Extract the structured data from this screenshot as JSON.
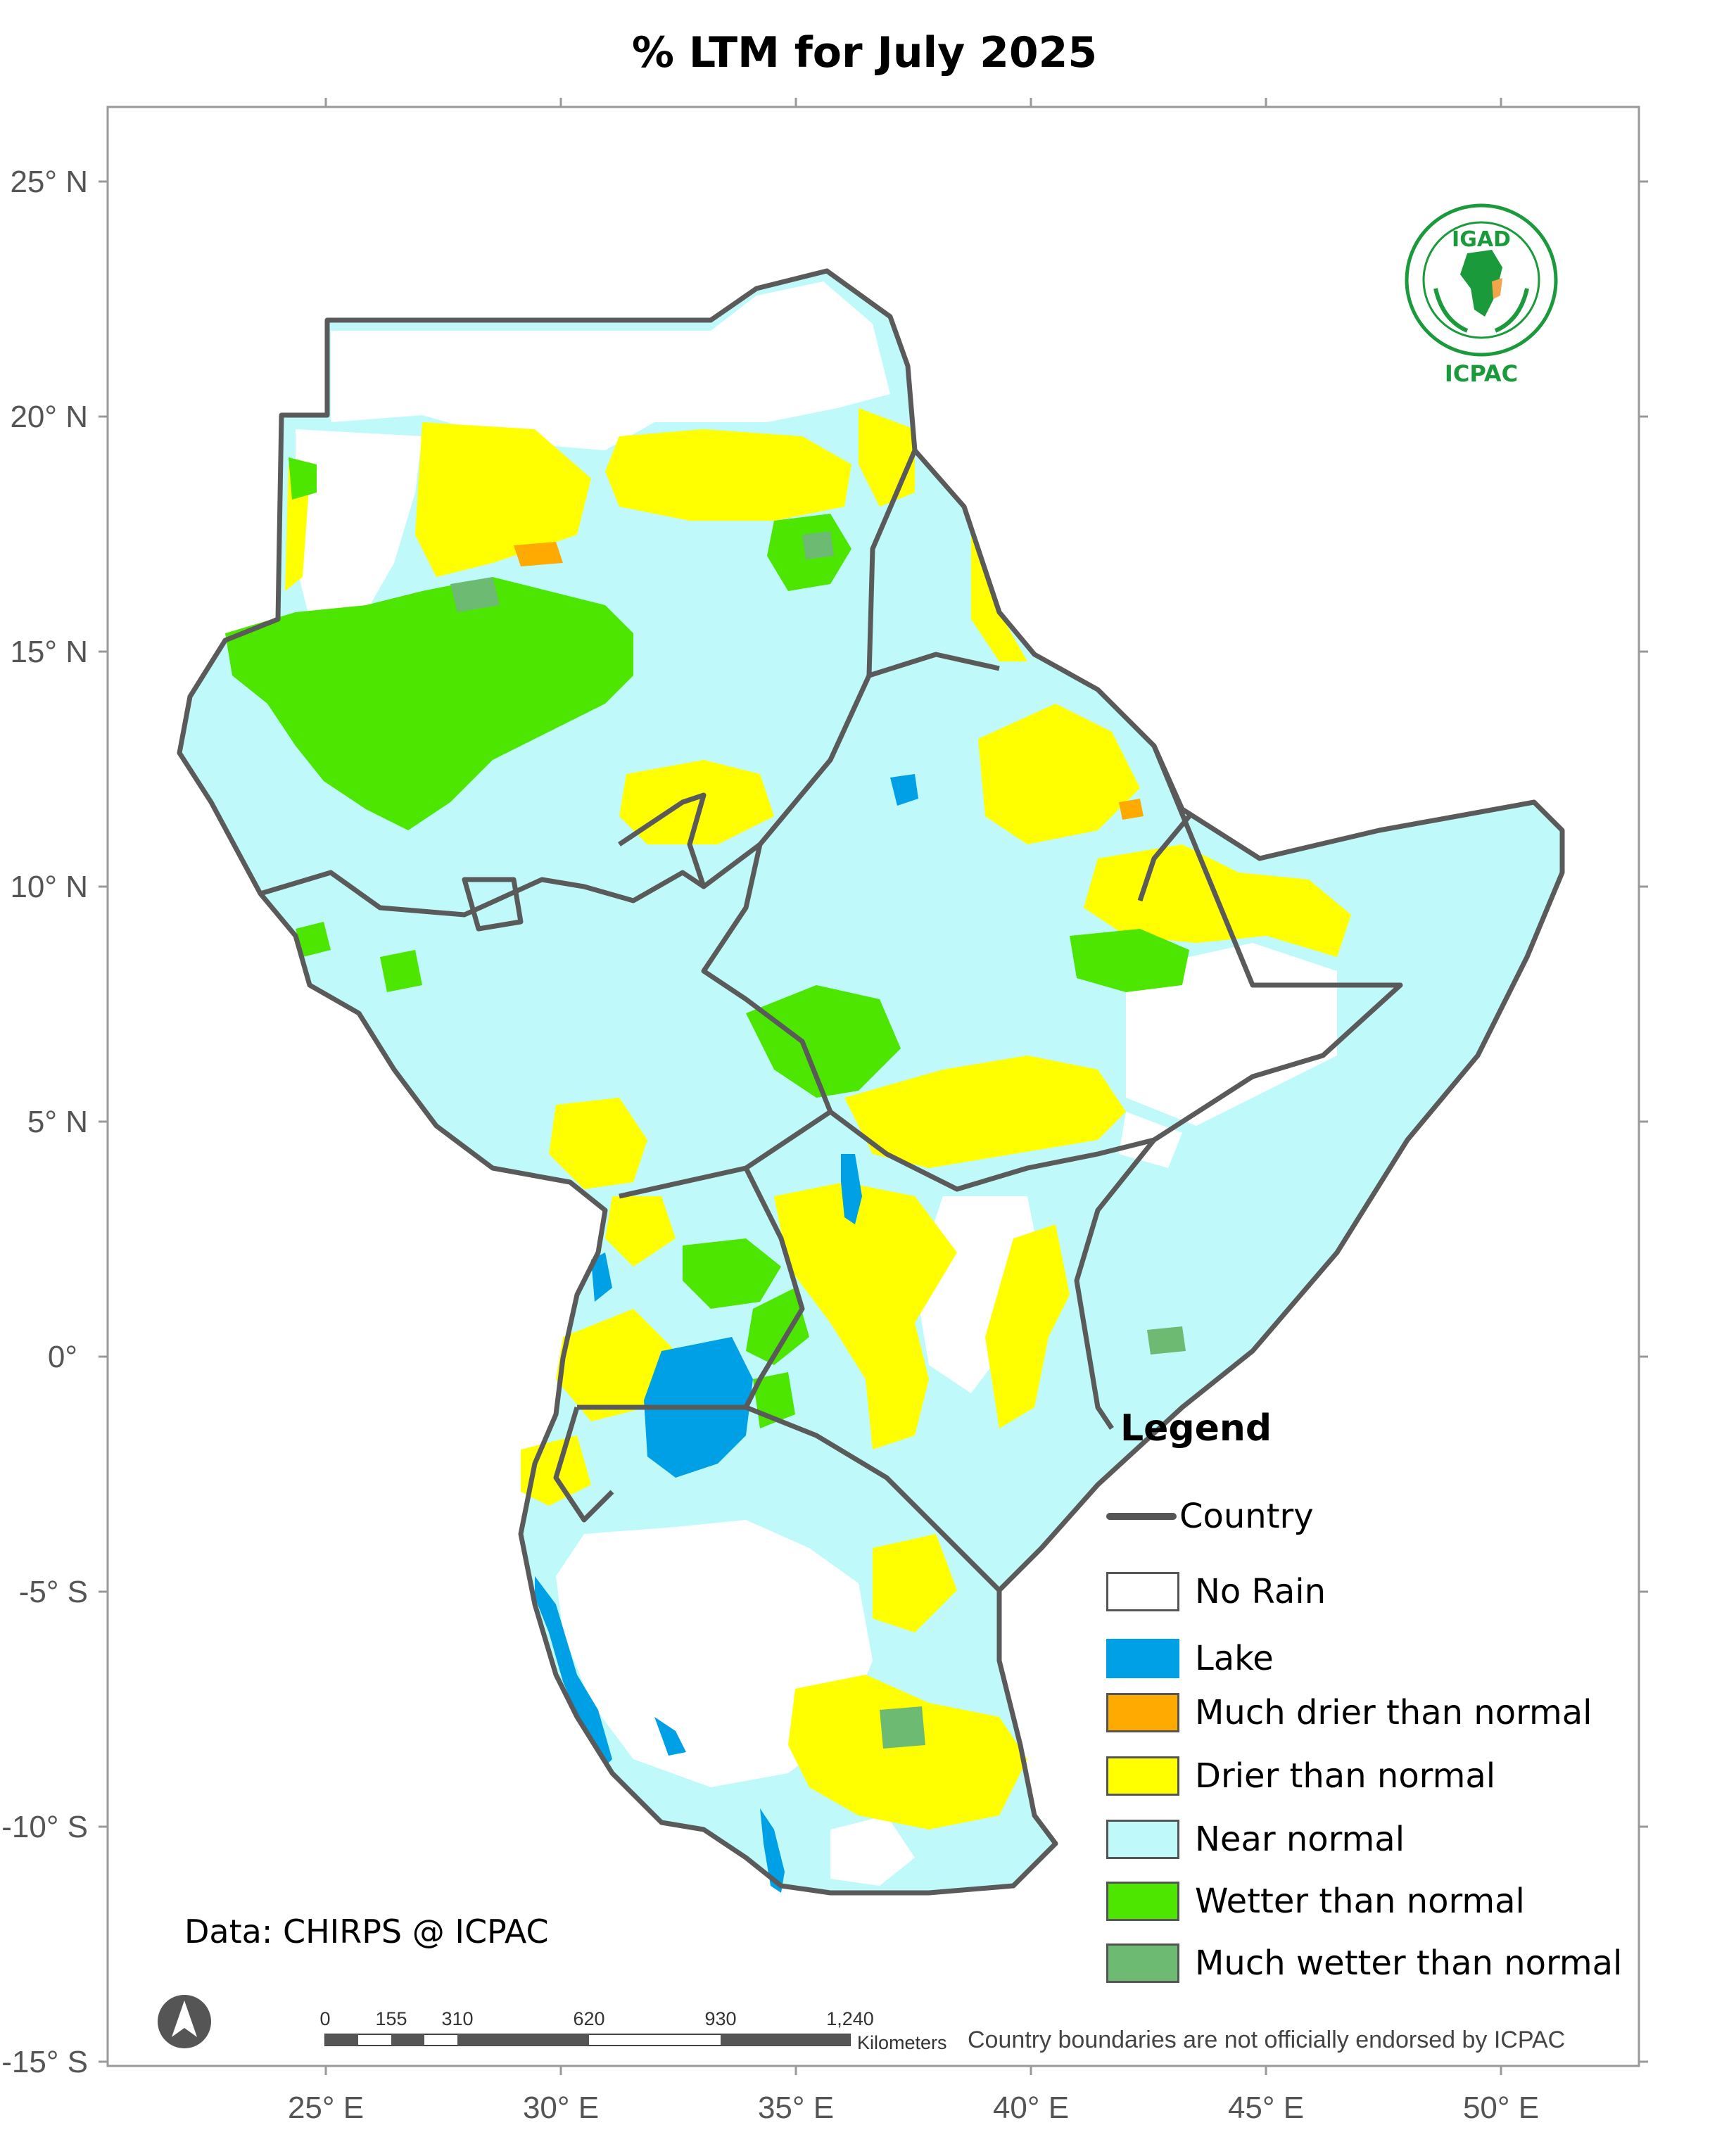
{
  "title": "% LTM  for  July 2025",
  "axes": {
    "latitude_ticks": [
      "25° N",
      "20° N",
      "15° N",
      "10° N",
      "5° N",
      "0°",
      "-5° S",
      "-10° S",
      "-15° S"
    ],
    "longitude_ticks": [
      "25° E",
      "30° E",
      "35° E",
      "40° E",
      "45° E",
      "50° E"
    ]
  },
  "legend": {
    "title": "Legend",
    "country_label": "Country",
    "items": [
      {
        "label": "No Rain",
        "color": "#ffffff"
      },
      {
        "label": "Lake",
        "color": "#00a0e6"
      },
      {
        "label": "Much drier than normal",
        "color": "#ffaa00"
      },
      {
        "label": "Drier than normal",
        "color": "#ffff00"
      },
      {
        "label": "Near normal",
        "color": "#bff9f9"
      },
      {
        "label": "Wetter than normal",
        "color": "#4ce600"
      },
      {
        "label": "Much wetter than normal",
        "color": "#6dba73"
      }
    ]
  },
  "data_credit": "Data: CHIRPS @ ICPAC",
  "disclaimer": "Country boundaries are not officially endorsed by ICPAC",
  "scale_bar": {
    "labels": [
      "0",
      "155",
      "310",
      "620",
      "930",
      "1,240"
    ],
    "unit": "Kilometers"
  },
  "logo": {
    "top_text": "IGAD",
    "bottom_text": "ICPAC"
  },
  "colors": {
    "border": "#5a5a5a",
    "frame": "#999999"
  }
}
